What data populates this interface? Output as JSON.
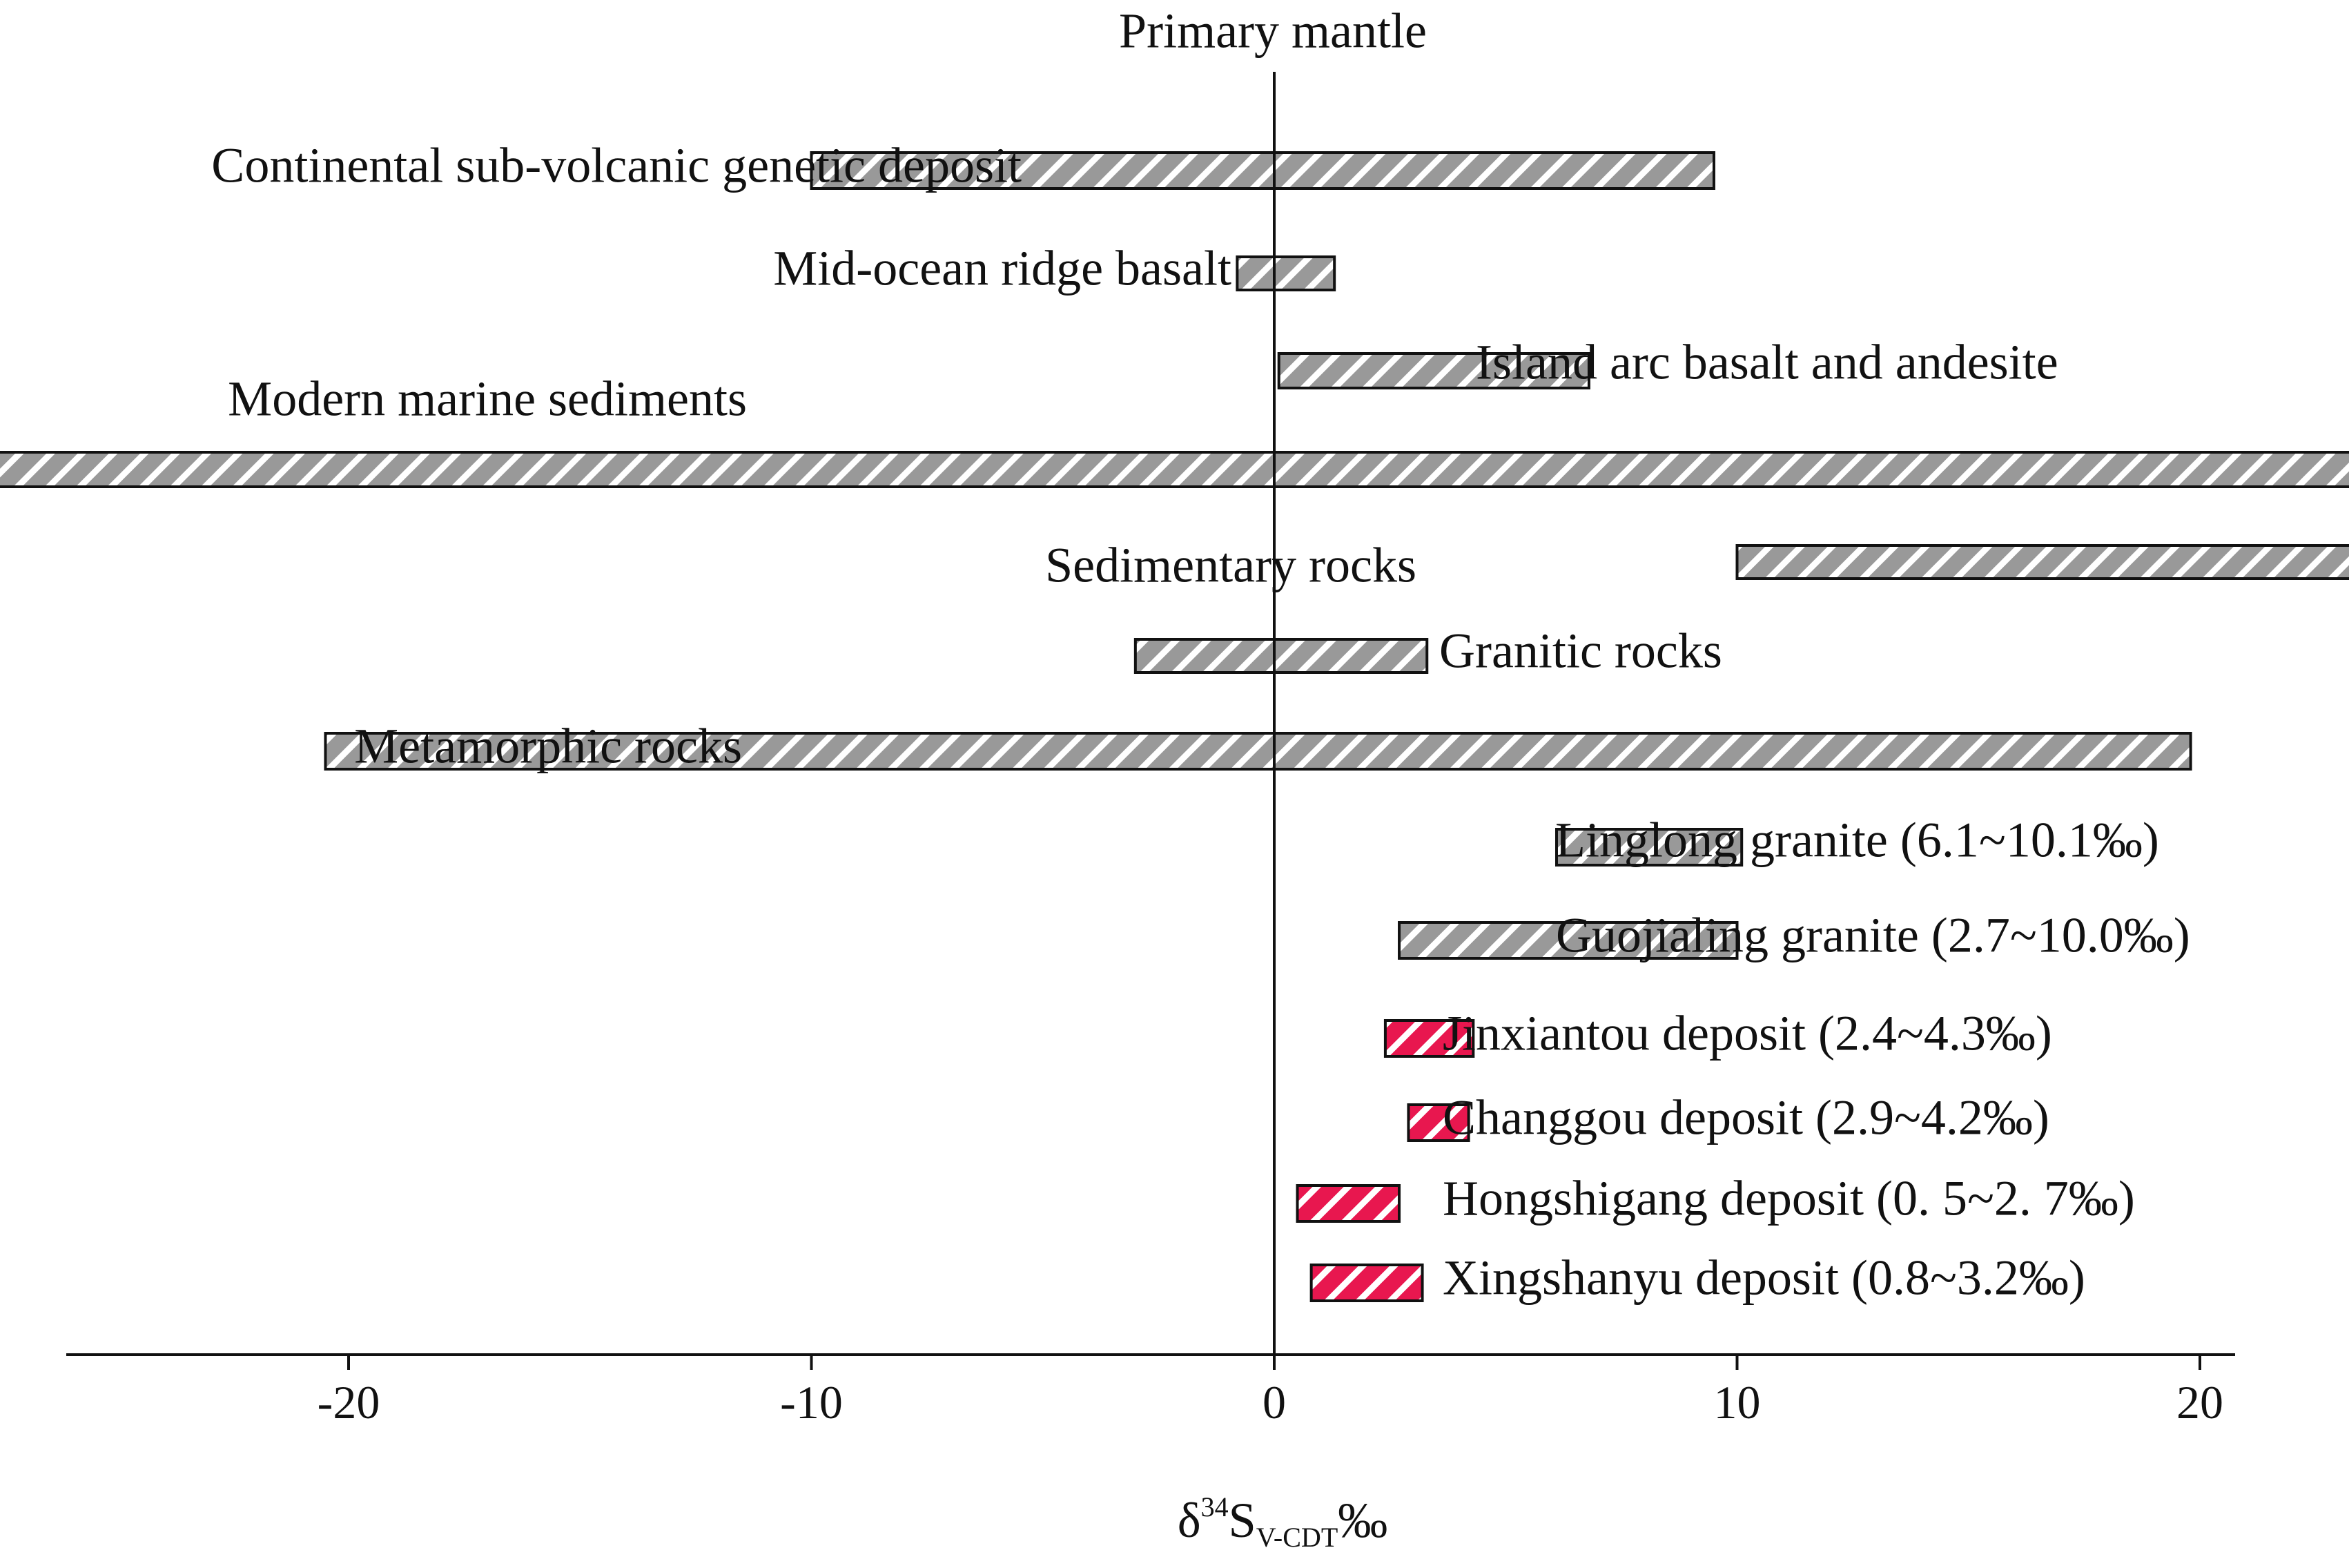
{
  "chart_data": {
    "type": "bar",
    "orientation": "horizontal-range",
    "title": "",
    "xlabel": {
      "symbol": "δ",
      "superscript": "34",
      "element": "S",
      "subscript": "V-CDT",
      "unit": "‰"
    },
    "ylabel": "",
    "xlim": [
      -52,
      41
    ],
    "xticks": [
      -50,
      -40,
      -30,
      -20,
      -10,
      0,
      10,
      20,
      30,
      40
    ],
    "grid": false,
    "legend": "none",
    "reference_line": {
      "x": 0,
      "label": "Primary  mantle"
    },
    "colors": {
      "reference_bar": "#999999",
      "deposit_bar": "#e8174f",
      "hatch": "#ffffff",
      "outline": "#111111"
    },
    "series": [
      {
        "name": "Continental sub-volcanic genetic deposit",
        "min": -10,
        "max": 9.5,
        "group": "reference"
      },
      {
        "name": "Mid-ocean ridge basalt",
        "min": -0.8,
        "max": 1.3,
        "group": "reference"
      },
      {
        "name": "Island arc basalt and andesite",
        "min": 0.1,
        "max": 6.8,
        "group": "reference"
      },
      {
        "name": "Modern marine sediments",
        "min": -50.5,
        "max": 23.5,
        "group": "reference"
      },
      {
        "name": "Sedimentary rocks",
        "min": 10,
        "max": 34.7,
        "group": "reference"
      },
      {
        "name": "Granitic rocks",
        "min": -3,
        "max": 3.3,
        "group": "reference"
      },
      {
        "name": "Metamorphic rocks",
        "min": -20.5,
        "max": 19.8,
        "group": "reference"
      },
      {
        "name": "Linglong granite (6.1~10.1‰)",
        "min": 6.1,
        "max": 10.1,
        "group": "reference"
      },
      {
        "name": "Guojialing granite (2.7~10.0‰)",
        "min": 2.7,
        "max": 10.0,
        "group": "reference"
      },
      {
        "name": "Jinxiantou deposit  (2.4~4.3‰)",
        "min": 2.4,
        "max": 4.3,
        "group": "deposit"
      },
      {
        "name": "Changgou deposit  (2.9~4.2‰)",
        "min": 2.9,
        "max": 4.2,
        "group": "deposit"
      },
      {
        "name": "Hongshigang  deposit  (0. 5~2. 7‰)",
        "min": 0.5,
        "max": 2.7,
        "group": "deposit"
      },
      {
        "name": "Xingshanyu deposit  (0.8~3.2‰)",
        "min": 0.8,
        "max": 3.2,
        "group": "deposit"
      }
    ]
  }
}
